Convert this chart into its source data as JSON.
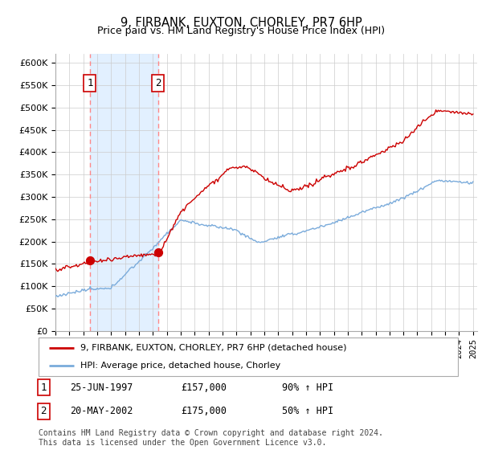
{
  "title": "9, FIRBANK, EUXTON, CHORLEY, PR7 6HP",
  "subtitle": "Price paid vs. HM Land Registry's House Price Index (HPI)",
  "ylim": [
    0,
    620000
  ],
  "yticks": [
    0,
    50000,
    100000,
    150000,
    200000,
    250000,
    300000,
    350000,
    400000,
    450000,
    500000,
    550000,
    600000
  ],
  "ytick_labels": [
    "£0",
    "£50K",
    "£100K",
    "£150K",
    "£200K",
    "£250K",
    "£300K",
    "£350K",
    "£400K",
    "£450K",
    "£500K",
    "£550K",
    "£600K"
  ],
  "sale1_date": 1997.48,
  "sale1_price": 157000,
  "sale1_label": "1",
  "sale2_date": 2002.38,
  "sale2_price": 175000,
  "sale2_label": "2",
  "hpi_color": "#7aabdb",
  "price_color": "#cc0000",
  "sale_marker_color": "#cc0000",
  "shade_color": "#ddeeff",
  "vline_color": "#ff8888",
  "legend_line1": "9, FIRBANK, EUXTON, CHORLEY, PR7 6HP (detached house)",
  "legend_line2": "HPI: Average price, detached house, Chorley",
  "background_color": "#ffffff",
  "grid_color": "#cccccc",
  "footer": "Contains HM Land Registry data © Crown copyright and database right 2024.\nThis data is licensed under the Open Government Licence v3.0."
}
